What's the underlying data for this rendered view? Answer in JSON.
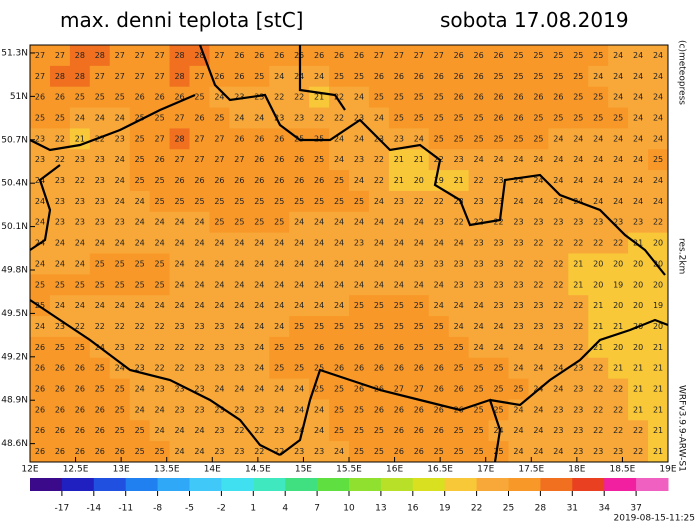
{
  "map": {
    "title": "max. denni teplota [stC]",
    "date": "sobota 17.08.2019",
    "ylim": [
      51.355,
      48.473
    ],
    "xlim": [
      12,
      19
    ],
    "yticks": [
      {
        "value": 51.3,
        "label": "51.3N"
      },
      {
        "value": 51,
        "label": "51N"
      },
      {
        "value": 50.7,
        "label": "50.7N"
      },
      {
        "value": 50.4,
        "label": "50.4N"
      },
      {
        "value": 50.1,
        "label": "50.1N"
      },
      {
        "value": 49.8,
        "label": "49.8N"
      },
      {
        "value": 49.5,
        "label": "49.5N"
      },
      {
        "value": 49.2,
        "label": "49.2N"
      },
      {
        "value": 48.9,
        "label": "48.9N"
      },
      {
        "value": 48.6,
        "label": "48.6N"
      }
    ],
    "xticks": [
      {
        "value": 12,
        "label": "12E"
      },
      {
        "value": 12.5,
        "label": "12.5E"
      },
      {
        "value": 13,
        "label": "13E"
      },
      {
        "value": 13.5,
        "label": "13.5E"
      },
      {
        "value": 14,
        "label": "14E"
      },
      {
        "value": 14.5,
        "label": "14.5E"
      },
      {
        "value": 15,
        "label": "15E"
      },
      {
        "value": 15.5,
        "label": "15.5E"
      },
      {
        "value": 16,
        "label": "16E"
      },
      {
        "value": 16.5,
        "label": "16.5E"
      },
      {
        "value": 17,
        "label": "17E"
      },
      {
        "value": 17.5,
        "label": "17.5E"
      },
      {
        "value": 18,
        "label": "18E"
      },
      {
        "value": 18.5,
        "label": "18.5E"
      },
      {
        "value": 19,
        "label": "19E"
      }
    ],
    "colorbar": {
      "range": [
        -20,
        40
      ],
      "labels": [
        -17,
        -14,
        -11,
        -8,
        -5,
        -2,
        1,
        4,
        7,
        10,
        13,
        16,
        19,
        22,
        25,
        28,
        31,
        34,
        37
      ],
      "colors": [
        "#3a0a8a",
        "#2020c0",
        "#2050e0",
        "#2080f0",
        "#30a8f8",
        "#40c8f8",
        "#40e0f0",
        "#40e8c0",
        "#40e080",
        "#60e040",
        "#90e030",
        "#b8e028",
        "#d8e020",
        "#f8c838",
        "#f8a838",
        "#f89828",
        "#f07020",
        "#e84020",
        "#f020a0",
        "#f060c0"
      ]
    },
    "credit": "(c)meteopress",
    "resolution": "res.2km",
    "model": "WRFv3.9.9-ARW-S1",
    "issued": "2019-08-15-11:25",
    "grid": [
      [
        27,
        27,
        28,
        28,
        27,
        27,
        27,
        28,
        28,
        27,
        26,
        26,
        26,
        25,
        26,
        26,
        26,
        27,
        27,
        27,
        27,
        26,
        26,
        26,
        25,
        25,
        25,
        25,
        25,
        24,
        24,
        24
      ],
      [
        27,
        28,
        28,
        27,
        27,
        27,
        27,
        28,
        27,
        26,
        26,
        25,
        24,
        24,
        24,
        25,
        25,
        26,
        26,
        26,
        26,
        26,
        26,
        25,
        25,
        25,
        25,
        25,
        24,
        24,
        24,
        24
      ],
      [
        26,
        26,
        25,
        25,
        25,
        26,
        26,
        26,
        25,
        24,
        23,
        23,
        22,
        22,
        21,
        22,
        24,
        25,
        25,
        25,
        25,
        26,
        26,
        26,
        26,
        26,
        26,
        25,
        25,
        24,
        24,
        24
      ],
      [
        25,
        25,
        24,
        24,
        24,
        25,
        25,
        27,
        26,
        25,
        24,
        24,
        23,
        23,
        22,
        22,
        23,
        24,
        25,
        25,
        25,
        25,
        25,
        26,
        26,
        25,
        25,
        25,
        25,
        25,
        24,
        24
      ],
      [
        23,
        22,
        21,
        22,
        23,
        25,
        27,
        28,
        27,
        27,
        26,
        26,
        26,
        25,
        25,
        24,
        24,
        23,
        23,
        24,
        25,
        25,
        25,
        25,
        25,
        25,
        24,
        24,
        24,
        24,
        24,
        24
      ],
      [
        23,
        22,
        23,
        23,
        24,
        25,
        26,
        27,
        27,
        27,
        27,
        26,
        26,
        26,
        25,
        24,
        23,
        22,
        21,
        21,
        22,
        23,
        24,
        24,
        24,
        24,
        24,
        24,
        24,
        24,
        24,
        25
      ],
      [
        24,
        23,
        22,
        23,
        24,
        25,
        25,
        26,
        26,
        26,
        26,
        26,
        26,
        26,
        26,
        25,
        24,
        22,
        21,
        20,
        19,
        21,
        22,
        23,
        24,
        24,
        24,
        24,
        24,
        24,
        24,
        24
      ],
      [
        24,
        23,
        23,
        23,
        24,
        24,
        25,
        25,
        25,
        25,
        25,
        25,
        25,
        25,
        25,
        25,
        25,
        24,
        23,
        22,
        22,
        23,
        23,
        23,
        24,
        24,
        24,
        24,
        24,
        24,
        24,
        24
      ],
      [
        24,
        23,
        23,
        23,
        23,
        24,
        24,
        24,
        24,
        25,
        25,
        25,
        25,
        24,
        24,
        24,
        24,
        24,
        24,
        24,
        23,
        22,
        22,
        22,
        23,
        23,
        23,
        23,
        23,
        23,
        23,
        22
      ],
      [
        24,
        24,
        24,
        24,
        24,
        24,
        24,
        24,
        24,
        24,
        24,
        24,
        24,
        24,
        24,
        24,
        23,
        24,
        24,
        24,
        24,
        24,
        23,
        23,
        23,
        22,
        22,
        22,
        22,
        22,
        21,
        20
      ],
      [
        24,
        24,
        24,
        25,
        25,
        25,
        25,
        24,
        24,
        24,
        24,
        24,
        24,
        24,
        24,
        24,
        24,
        24,
        24,
        23,
        23,
        23,
        23,
        23,
        22,
        22,
        22,
        21,
        20,
        20,
        20,
        20
      ],
      [
        25,
        25,
        25,
        25,
        25,
        25,
        25,
        24,
        24,
        24,
        24,
        24,
        24,
        24,
        24,
        24,
        24,
        24,
        24,
        24,
        24,
        23,
        23,
        23,
        23,
        22,
        22,
        21,
        20,
        19,
        20,
        20
      ],
      [
        25,
        24,
        24,
        24,
        24,
        24,
        24,
        24,
        24,
        24,
        24,
        24,
        24,
        24,
        24,
        24,
        25,
        25,
        25,
        25,
        24,
        24,
        24,
        23,
        23,
        23,
        22,
        22,
        21,
        20,
        20,
        19
      ],
      [
        24,
        23,
        22,
        22,
        22,
        22,
        22,
        23,
        23,
        23,
        24,
        24,
        24,
        25,
        25,
        25,
        25,
        25,
        25,
        25,
        25,
        24,
        24,
        24,
        23,
        23,
        23,
        22,
        21,
        21,
        20,
        20
      ],
      [
        26,
        25,
        25,
        24,
        23,
        22,
        22,
        22,
        22,
        23,
        23,
        24,
        25,
        25,
        26,
        26,
        26,
        26,
        26,
        25,
        25,
        25,
        24,
        24,
        24,
        24,
        23,
        22,
        21,
        20,
        20,
        21
      ],
      [
        26,
        26,
        26,
        25,
        24,
        23,
        22,
        22,
        23,
        23,
        23,
        24,
        25,
        25,
        25,
        26,
        26,
        26,
        26,
        26,
        26,
        25,
        25,
        25,
        24,
        24,
        24,
        23,
        22,
        21,
        21,
        21
      ],
      [
        26,
        26,
        26,
        25,
        25,
        24,
        23,
        23,
        23,
        24,
        24,
        24,
        24,
        24,
        25,
        25,
        26,
        26,
        27,
        27,
        26,
        26,
        25,
        25,
        25,
        24,
        24,
        23,
        22,
        22,
        21,
        21
      ],
      [
        26,
        26,
        26,
        26,
        25,
        24,
        24,
        23,
        23,
        23,
        23,
        23,
        24,
        24,
        24,
        25,
        25,
        26,
        26,
        26,
        26,
        26,
        25,
        25,
        24,
        24,
        23,
        23,
        22,
        22,
        21,
        21
      ],
      [
        26,
        26,
        26,
        26,
        25,
        25,
        24,
        24,
        24,
        23,
        22,
        22,
        23,
        24,
        24,
        25,
        25,
        25,
        26,
        26,
        26,
        25,
        25,
        24,
        24,
        24,
        23,
        23,
        22,
        22,
        22,
        21
      ],
      [
        26,
        26,
        26,
        26,
        26,
        25,
        25,
        24,
        24,
        23,
        23,
        22,
        22,
        23,
        23,
        24,
        25,
        25,
        26,
        26,
        25,
        25,
        25,
        25,
        24,
        24,
        24,
        23,
        23,
        23,
        22,
        21
      ]
    ]
  }
}
